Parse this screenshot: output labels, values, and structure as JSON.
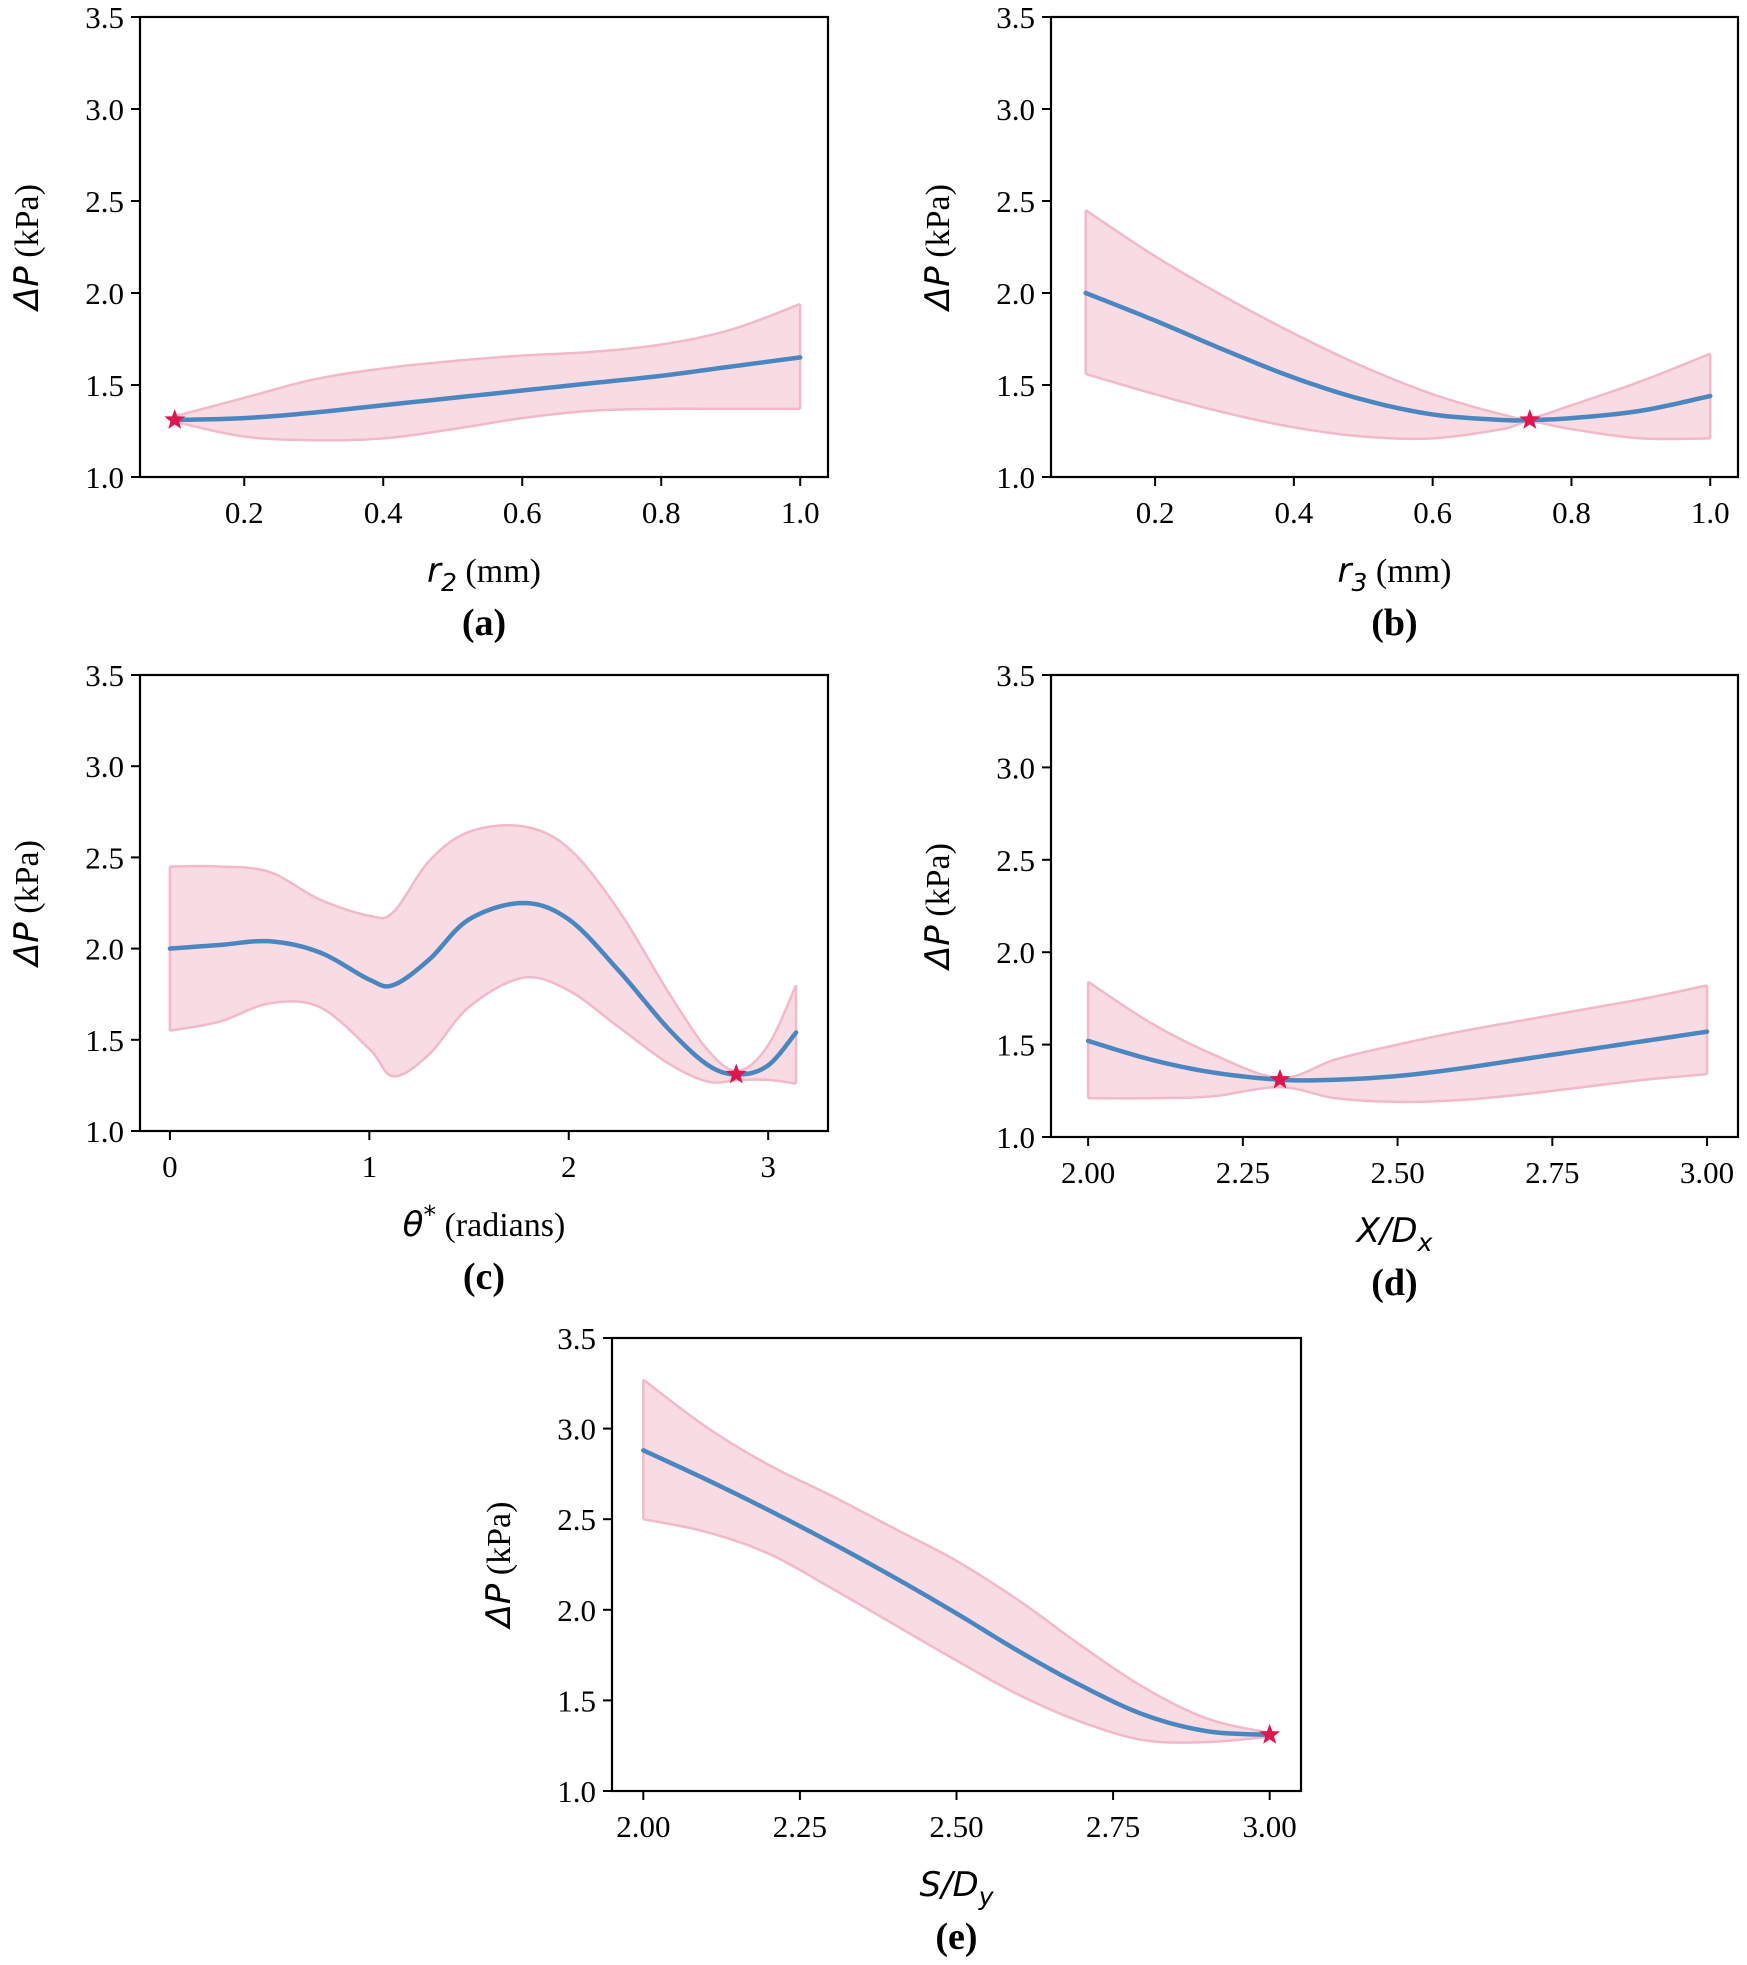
{
  "colors": {
    "mean_line": "#4a86c0",
    "band_fill": "#f8dbe3",
    "band_edge": "#f2b9c8",
    "optimum_star": "#e0174f",
    "axes": "#000000"
  },
  "chart_data": [
    {
      "id": "a",
      "type": "line",
      "caption": "(a)",
      "ylabel_sym": "ΔP",
      "ylabel_unit": " (kPa)",
      "xlabel_sym": "r",
      "xlabel_sub": "2",
      "xlabel_unit": " (mm)",
      "xlim": [
        0.05,
        1.04
      ],
      "ylim": [
        1.0,
        3.5
      ],
      "xticks": [
        0.2,
        0.4,
        0.6,
        0.8,
        1.0
      ],
      "xtick_labels": [
        "0.2",
        "0.4",
        "0.6",
        "0.8",
        "1.0"
      ],
      "yticks": [
        1.0,
        1.5,
        2.0,
        2.5,
        3.0,
        3.5
      ],
      "ytick_labels": [
        "1.0",
        "1.5",
        "2.0",
        "2.5",
        "3.0",
        "3.5"
      ],
      "x": [
        0.1,
        0.2,
        0.3,
        0.4,
        0.5,
        0.6,
        0.7,
        0.8,
        0.9,
        1.0
      ],
      "mean": [
        1.31,
        1.32,
        1.35,
        1.39,
        1.43,
        1.47,
        1.51,
        1.55,
        1.6,
        1.65
      ],
      "lower": [
        1.3,
        1.22,
        1.2,
        1.21,
        1.26,
        1.32,
        1.36,
        1.37,
        1.37,
        1.37
      ],
      "upper": [
        1.33,
        1.43,
        1.53,
        1.59,
        1.63,
        1.66,
        1.68,
        1.72,
        1.8,
        1.94
      ],
      "optimum": {
        "x": 0.1,
        "y": 1.31
      }
    },
    {
      "id": "b",
      "type": "line",
      "caption": "(b)",
      "ylabel_sym": "ΔP",
      "ylabel_unit": " (kPa)",
      "xlabel_sym": "r",
      "xlabel_sub": "3",
      "xlabel_unit": " (mm)",
      "xlim": [
        0.05,
        1.04
      ],
      "ylim": [
        1.0,
        3.5
      ],
      "xticks": [
        0.2,
        0.4,
        0.6,
        0.8,
        1.0
      ],
      "xtick_labels": [
        "0.2",
        "0.4",
        "0.6",
        "0.8",
        "1.0"
      ],
      "yticks": [
        1.0,
        1.5,
        2.0,
        2.5,
        3.0,
        3.5
      ],
      "ytick_labels": [
        "1.0",
        "1.5",
        "2.0",
        "2.5",
        "3.0",
        "3.5"
      ],
      "x": [
        0.1,
        0.2,
        0.3,
        0.4,
        0.5,
        0.6,
        0.7,
        0.74,
        0.8,
        0.9,
        1.0
      ],
      "mean": [
        2.0,
        1.85,
        1.69,
        1.54,
        1.42,
        1.34,
        1.31,
        1.31,
        1.32,
        1.36,
        1.44
      ],
      "lower": [
        1.56,
        1.45,
        1.35,
        1.27,
        1.22,
        1.21,
        1.26,
        1.3,
        1.26,
        1.21,
        1.21
      ],
      "upper": [
        2.45,
        2.2,
        1.98,
        1.78,
        1.6,
        1.45,
        1.34,
        1.32,
        1.39,
        1.52,
        1.67
      ],
      "optimum": {
        "x": 0.74,
        "y": 1.31
      }
    },
    {
      "id": "c",
      "type": "line",
      "caption": "(c)",
      "ylabel_sym": "ΔP",
      "ylabel_unit": " (kPa)",
      "xlabel_sym": "θ",
      "xlabel_sup": "*",
      "xlabel_unit": " (radians)",
      "xlim": [
        -0.15,
        3.3
      ],
      "ylim": [
        1.0,
        3.5
      ],
      "xticks": [
        0,
        1,
        2,
        3
      ],
      "xtick_labels": [
        "0",
        "1",
        "2",
        "3"
      ],
      "yticks": [
        1.0,
        1.5,
        2.0,
        2.5,
        3.0,
        3.5
      ],
      "ytick_labels": [
        "1.0",
        "1.5",
        "2.0",
        "2.5",
        "3.0",
        "3.5"
      ],
      "x": [
        0,
        0.25,
        0.5,
        0.75,
        1.0,
        1.12,
        1.3,
        1.5,
        1.77,
        2.0,
        2.25,
        2.5,
        2.7,
        2.85,
        3.0,
        3.14
      ],
      "mean": [
        2.0,
        2.02,
        2.04,
        1.98,
        1.83,
        1.8,
        1.94,
        2.16,
        2.25,
        2.16,
        1.88,
        1.56,
        1.36,
        1.31,
        1.36,
        1.54
      ],
      "lower": [
        1.55,
        1.6,
        1.7,
        1.68,
        1.45,
        1.3,
        1.42,
        1.68,
        1.84,
        1.77,
        1.57,
        1.37,
        1.27,
        1.28,
        1.28,
        1.26
      ],
      "upper": [
        2.45,
        2.45,
        2.42,
        2.27,
        2.18,
        2.2,
        2.48,
        2.64,
        2.67,
        2.55,
        2.21,
        1.76,
        1.44,
        1.33,
        1.47,
        1.8
      ],
      "optimum": {
        "x": 2.84,
        "y": 1.31
      }
    },
    {
      "id": "d",
      "type": "line",
      "caption": "(d)",
      "ylabel_sym": "ΔP",
      "ylabel_unit": " (kPa)",
      "xlabel_sym": "X/D",
      "xlabel_sub": "x",
      "xlabel_unit": "",
      "xlim": [
        1.94,
        3.05
      ],
      "ylim": [
        1.0,
        3.5
      ],
      "xticks": [
        2.0,
        2.25,
        2.5,
        2.75,
        3.0
      ],
      "xtick_labels": [
        "2.00",
        "2.25",
        "2.50",
        "2.75",
        "3.00"
      ],
      "yticks": [
        1.0,
        1.5,
        2.0,
        2.5,
        3.0,
        3.5
      ],
      "ytick_labels": [
        "1.0",
        "1.5",
        "2.0",
        "2.5",
        "3.0",
        "3.5"
      ],
      "x": [
        2.0,
        2.1,
        2.2,
        2.31,
        2.4,
        2.5,
        2.6,
        2.7,
        2.8,
        2.9,
        3.0
      ],
      "mean": [
        1.52,
        1.42,
        1.35,
        1.31,
        1.31,
        1.33,
        1.37,
        1.42,
        1.47,
        1.52,
        1.57
      ],
      "lower": [
        1.21,
        1.21,
        1.22,
        1.27,
        1.21,
        1.19,
        1.2,
        1.23,
        1.27,
        1.31,
        1.34
      ],
      "upper": [
        1.84,
        1.62,
        1.45,
        1.32,
        1.42,
        1.5,
        1.57,
        1.63,
        1.69,
        1.75,
        1.82
      ],
      "optimum": {
        "x": 2.31,
        "y": 1.31
      }
    },
    {
      "id": "e",
      "type": "line",
      "caption": "(e)",
      "ylabel_sym": "ΔP",
      "ylabel_unit": " (kPa)",
      "xlabel_sym": "S/D",
      "xlabel_sub": "y",
      "xlabel_unit": "",
      "xlim": [
        1.95,
        3.05
      ],
      "ylim": [
        1.0,
        3.5
      ],
      "xticks": [
        2.0,
        2.25,
        2.5,
        2.75,
        3.0
      ],
      "xtick_labels": [
        "2.00",
        "2.25",
        "2.50",
        "2.75",
        "3.00"
      ],
      "yticks": [
        1.0,
        1.5,
        2.0,
        2.5,
        3.0,
        3.5
      ],
      "ytick_labels": [
        "1.0",
        "1.5",
        "2.0",
        "2.5",
        "3.0",
        "3.5"
      ],
      "x": [
        2.0,
        2.1,
        2.2,
        2.3,
        2.4,
        2.5,
        2.6,
        2.7,
        2.8,
        2.9,
        3.0
      ],
      "mean": [
        2.88,
        2.72,
        2.55,
        2.37,
        2.18,
        1.98,
        1.77,
        1.58,
        1.42,
        1.33,
        1.31
      ],
      "lower": [
        2.5,
        2.43,
        2.31,
        2.12,
        1.92,
        1.72,
        1.53,
        1.38,
        1.28,
        1.27,
        1.3
      ],
      "upper": [
        3.27,
        3.01,
        2.8,
        2.63,
        2.45,
        2.27,
        2.05,
        1.8,
        1.57,
        1.4,
        1.32
      ],
      "optimum": {
        "x": 3.0,
        "y": 1.31
      }
    }
  ]
}
